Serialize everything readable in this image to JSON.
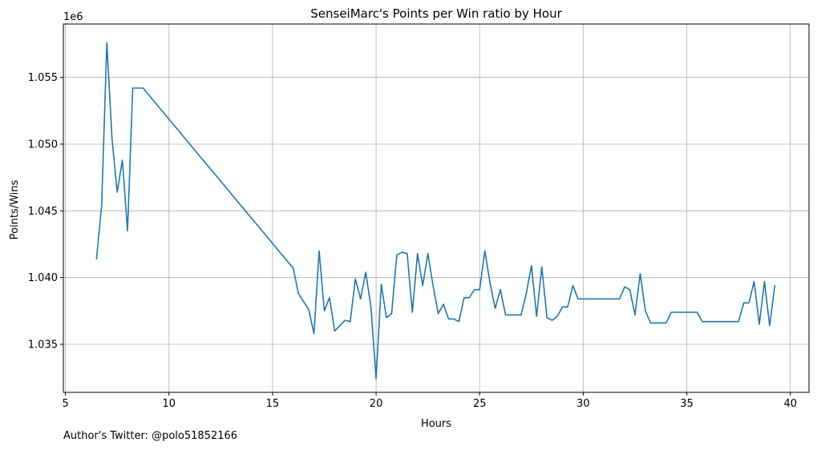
{
  "chart_data": {
    "type": "line",
    "title": "SenseiMarc's Points per Win ratio by Hour",
    "xlabel": "Hours",
    "ylabel": "Points/Wins",
    "y_offset_label": "1e6",
    "xlim": [
      4.9,
      40.9
    ],
    "ylim": [
      1031400,
      1059000
    ],
    "xticks": [
      5,
      10,
      15,
      20,
      25,
      30,
      35,
      40
    ],
    "xtick_labels": [
      "5",
      "10",
      "15",
      "20",
      "25",
      "30",
      "35",
      "40"
    ],
    "yticks": [
      1035000,
      1040000,
      1045000,
      1050000,
      1055000
    ],
    "ytick_labels": [
      "1.035",
      "1.040",
      "1.045",
      "1.050",
      "1.055"
    ],
    "grid": true,
    "color": "#1f77b4",
    "series": [
      {
        "x": [
          6.5,
          6.75,
          7.0,
          7.25,
          7.5,
          7.75,
          8.0,
          8.25,
          8.5,
          8.75,
          16.0,
          16.25,
          16.5,
          16.75,
          17.0,
          17.25,
          17.5,
          17.75,
          18.0,
          18.25,
          18.5,
          18.75,
          19.0,
          19.25,
          19.5,
          19.75,
          20.0,
          20.25,
          20.5,
          20.75,
          21.0,
          21.25,
          21.5,
          21.75,
          22.0,
          22.25,
          22.5,
          22.75,
          23.0,
          23.25,
          23.5,
          23.75,
          24.0,
          24.25,
          24.5,
          24.75,
          25.0,
          25.25,
          25.5,
          25.75,
          26.0,
          26.25,
          26.5,
          26.75,
          27.0,
          27.25,
          27.5,
          27.75,
          28.0,
          28.25,
          28.5,
          28.75,
          29.0,
          29.25,
          29.5,
          29.75,
          30.0,
          30.25,
          30.5,
          30.75,
          31.0,
          31.25,
          31.5,
          31.75,
          32.0,
          32.25,
          32.5,
          32.75,
          33.0,
          33.25,
          33.5,
          33.75,
          34.0,
          34.25,
          34.5,
          34.75,
          35.0,
          35.25,
          35.5,
          35.75,
          36.0,
          36.25,
          36.5,
          36.75,
          37.0,
          37.25,
          37.5,
          37.75,
          38.0,
          38.25,
          38.5,
          38.75,
          39.0,
          39.25
        ],
        "y": [
          1041400,
          1045400,
          1057600,
          1050400,
          1046400,
          1048800,
          1043500,
          1054200,
          1054200,
          1054200,
          1040700,
          1038800,
          1038200,
          1037600,
          1035800,
          1042000,
          1037500,
          1038500,
          1036000,
          1036400,
          1036800,
          1036700,
          1039900,
          1038400,
          1040400,
          1037800,
          1032400,
          1039500,
          1037000,
          1037300,
          1041700,
          1041900,
          1041800,
          1037400,
          1041800,
          1039400,
          1041800,
          1039400,
          1037300,
          1038000,
          1036900,
          1036900,
          1036700,
          1038500,
          1038500,
          1039100,
          1039100,
          1042000,
          1039600,
          1037700,
          1039100,
          1037200,
          1037200,
          1037200,
          1037200,
          1038800,
          1040900,
          1037100,
          1040800,
          1037000,
          1036800,
          1037100,
          1037800,
          1037800,
          1039400,
          1038400,
          1038400,
          1038400,
          1038400,
          1038400,
          1038400,
          1038400,
          1038400,
          1038400,
          1039300,
          1039100,
          1037200,
          1040300,
          1037500,
          1036600,
          1036600,
          1036600,
          1036600,
          1037400,
          1037400,
          1037400,
          1037400,
          1037400,
          1037400,
          1036700,
          1036700,
          1036700,
          1036700,
          1036700,
          1036700,
          1036700,
          1036700,
          1038100,
          1038100,
          1039700,
          1036500,
          1039700,
          1036400,
          1039400
        ]
      }
    ]
  },
  "footer": {
    "author_text": "Author's Twitter: @polo51852166"
  }
}
